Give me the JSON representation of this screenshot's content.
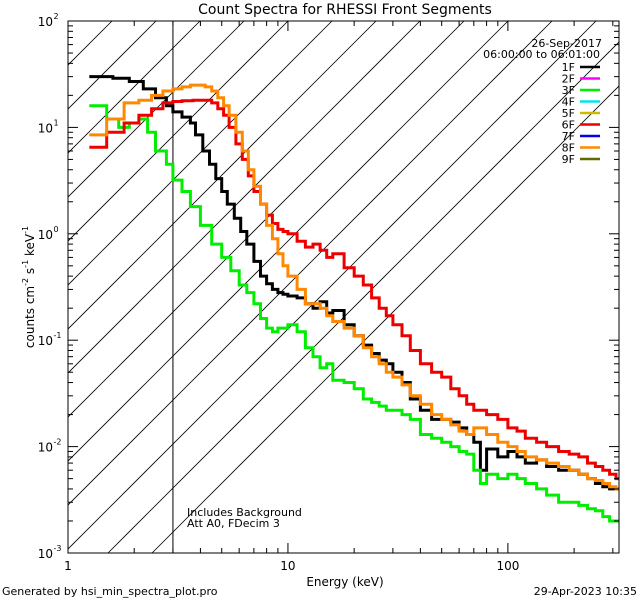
{
  "chart_data": {
    "type": "line",
    "title": "Count Spectra for RHESSI Front Segments",
    "xlabel": "Energy (keV)",
    "ylabel_parts": [
      "counts cm",
      "-2",
      " s",
      "-1",
      " keV",
      "-1"
    ],
    "xscale": "log",
    "yscale": "log",
    "xlim": [
      1,
      320
    ],
    "ylim": [
      0.001,
      100
    ],
    "x_ticks": [
      {
        "value": 1,
        "label": "1"
      },
      {
        "value": 10,
        "label": "10"
      },
      {
        "value": 100,
        "label": "100"
      }
    ],
    "y_ticks": [
      {
        "value": 0.001,
        "base": "10",
        "exp": "-3"
      },
      {
        "value": 0.01,
        "base": "10",
        "exp": "-2"
      },
      {
        "value": 0.1,
        "base": "10",
        "exp": "-1"
      },
      {
        "value": 1,
        "base": "10",
        "exp": "0"
      },
      {
        "value": 10,
        "base": "10",
        "exp": "1"
      },
      {
        "value": 100,
        "base": "10",
        "exp": "2"
      }
    ],
    "date": "26-Sep-2017",
    "time_range": "06:00:00 to 06:01:00",
    "legend_position": "top-right",
    "legend": [
      {
        "label": "1F",
        "color": "#000000"
      },
      {
        "label": "2F",
        "color": "#ff00ff"
      },
      {
        "label": "3F",
        "color": "#00ee00"
      },
      {
        "label": "4F",
        "color": "#00e5ee"
      },
      {
        "label": "5F",
        "color": "#ccbb00"
      },
      {
        "label": "6F",
        "color": "#ee0000"
      },
      {
        "label": "7F",
        "color": "#0000ee"
      },
      {
        "label": "8F",
        "color": "#ff8800"
      },
      {
        "label": "9F",
        "color": "#666600"
      }
    ],
    "shaded_region": {
      "from": 1,
      "to": 3,
      "style": "diagonal-hatch"
    },
    "annotations": [
      "Includes Background",
      "Att A0, FDecim 3"
    ],
    "series": [
      {
        "name": "1F",
        "color": "#000000",
        "points": [
          [
            1.25,
            30
          ],
          [
            1.6,
            29
          ],
          [
            1.9,
            27
          ],
          [
            2.2,
            23
          ],
          [
            2.5,
            19
          ],
          [
            2.8,
            16
          ],
          [
            3.0,
            14
          ],
          [
            3.3,
            12.5
          ],
          [
            3.6,
            11
          ],
          [
            3.8,
            8.5
          ],
          [
            4.1,
            6
          ],
          [
            4.4,
            4.5
          ],
          [
            4.7,
            3.3
          ],
          [
            5.0,
            2.5
          ],
          [
            5.3,
            1.9
          ],
          [
            5.7,
            1.4
          ],
          [
            6.1,
            1.05
          ],
          [
            6.5,
            0.8
          ],
          [
            7.0,
            0.55
          ],
          [
            7.5,
            0.4
          ],
          [
            8.0,
            0.34
          ],
          [
            8.5,
            0.3
          ],
          [
            9.0,
            0.28
          ],
          [
            9.5,
            0.27
          ],
          [
            10,
            0.26
          ],
          [
            11,
            0.25
          ],
          [
            12,
            0.22
          ],
          [
            13,
            0.2
          ],
          [
            14,
            0.23
          ],
          [
            15,
            0.18
          ],
          [
            16,
            0.19
          ],
          [
            18,
            0.14
          ],
          [
            20,
            0.11
          ],
          [
            22,
            0.09
          ],
          [
            24,
            0.075
          ],
          [
            26,
            0.065
          ],
          [
            28,
            0.06
          ],
          [
            30,
            0.05
          ],
          [
            33,
            0.04
          ],
          [
            36,
            0.028
          ],
          [
            40,
            0.022
          ],
          [
            45,
            0.018
          ],
          [
            50,
            0.018
          ],
          [
            55,
            0.017
          ],
          [
            60,
            0.015
          ],
          [
            65,
            0.013
          ],
          [
            70,
            0.011
          ],
          [
            75,
            0.006
          ],
          [
            80,
            0.0095
          ],
          [
            90,
            0.008
          ],
          [
            100,
            0.009
          ],
          [
            110,
            0.008
          ],
          [
            120,
            0.007
          ],
          [
            135,
            0.0075
          ],
          [
            150,
            0.0065
          ],
          [
            170,
            0.006
          ],
          [
            190,
            0.006
          ],
          [
            210,
            0.0055
          ],
          [
            230,
            0.005
          ],
          [
            250,
            0.0045
          ],
          [
            270,
            0.0042
          ],
          [
            290,
            0.004
          ],
          [
            310,
            0.004
          ]
        ]
      },
      {
        "name": "3F",
        "color": "#00ee00",
        "points": [
          [
            1.25,
            16
          ],
          [
            1.5,
            12
          ],
          [
            1.7,
            10
          ],
          [
            1.9,
            11
          ],
          [
            2.1,
            12
          ],
          [
            2.3,
            9
          ],
          [
            2.5,
            6
          ],
          [
            2.8,
            4.5
          ],
          [
            3.0,
            3.2
          ],
          [
            3.3,
            2.5
          ],
          [
            3.6,
            1.8
          ],
          [
            4.0,
            1.2
          ],
          [
            4.5,
            0.8
          ],
          [
            5.0,
            0.6
          ],
          [
            5.5,
            0.45
          ],
          [
            6.0,
            0.33
          ],
          [
            6.5,
            0.28
          ],
          [
            7.0,
            0.22
          ],
          [
            7.5,
            0.16
          ],
          [
            8.0,
            0.13
          ],
          [
            8.5,
            0.12
          ],
          [
            9.0,
            0.13
          ],
          [
            10,
            0.14
          ],
          [
            11,
            0.12
          ],
          [
            12,
            0.085
          ],
          [
            13,
            0.07
          ],
          [
            14,
            0.055
          ],
          [
            15,
            0.06
          ],
          [
            16,
            0.042
          ],
          [
            18,
            0.04
          ],
          [
            20,
            0.035
          ],
          [
            22,
            0.028
          ],
          [
            24,
            0.026
          ],
          [
            26,
            0.024
          ],
          [
            28,
            0.022
          ],
          [
            30,
            0.022
          ],
          [
            33,
            0.02
          ],
          [
            36,
            0.018
          ],
          [
            40,
            0.013
          ],
          [
            45,
            0.012
          ],
          [
            50,
            0.011
          ],
          [
            55,
            0.01
          ],
          [
            60,
            0.009
          ],
          [
            65,
            0.0085
          ],
          [
            70,
            0.006
          ],
          [
            75,
            0.0045
          ],
          [
            80,
            0.0055
          ],
          [
            90,
            0.005
          ],
          [
            100,
            0.0055
          ],
          [
            110,
            0.005
          ],
          [
            120,
            0.0045
          ],
          [
            135,
            0.004
          ],
          [
            150,
            0.0035
          ],
          [
            170,
            0.003
          ],
          [
            190,
            0.003
          ],
          [
            210,
            0.0028
          ],
          [
            230,
            0.0026
          ],
          [
            250,
            0.0025
          ],
          [
            270,
            0.0022
          ],
          [
            290,
            0.002
          ],
          [
            310,
            0.002
          ]
        ]
      },
      {
        "name": "6F",
        "color": "#ee0000",
        "points": [
          [
            1.25,
            6.5
          ],
          [
            1.5,
            9
          ],
          [
            1.8,
            11
          ],
          [
            2.1,
            13
          ],
          [
            2.4,
            15
          ],
          [
            2.7,
            17
          ],
          [
            3.0,
            17.5
          ],
          [
            3.3,
            17.8
          ],
          [
            3.7,
            18
          ],
          [
            4.1,
            18
          ],
          [
            4.5,
            17
          ],
          [
            4.8,
            15
          ],
          [
            5.1,
            13
          ],
          [
            5.4,
            10
          ],
          [
            5.8,
            7
          ],
          [
            6.2,
            5
          ],
          [
            6.6,
            3.5
          ],
          [
            7.0,
            2.5
          ],
          [
            7.5,
            1.9
          ],
          [
            8.0,
            1.5
          ],
          [
            8.5,
            1.25
          ],
          [
            9.0,
            1.1
          ],
          [
            9.5,
            1.05
          ],
          [
            10,
            1.0
          ],
          [
            11,
            0.85
          ],
          [
            12,
            0.75
          ],
          [
            13,
            0.8
          ],
          [
            14,
            0.7
          ],
          [
            15,
            0.6
          ],
          [
            16,
            0.65
          ],
          [
            18,
            0.48
          ],
          [
            20,
            0.4
          ],
          [
            22,
            0.33
          ],
          [
            24,
            0.25
          ],
          [
            26,
            0.2
          ],
          [
            28,
            0.17
          ],
          [
            30,
            0.14
          ],
          [
            33,
            0.11
          ],
          [
            36,
            0.08
          ],
          [
            40,
            0.06
          ],
          [
            45,
            0.05
          ],
          [
            50,
            0.045
          ],
          [
            55,
            0.035
          ],
          [
            60,
            0.03
          ],
          [
            65,
            0.025
          ],
          [
            70,
            0.022
          ],
          [
            80,
            0.02
          ],
          [
            90,
            0.018
          ],
          [
            100,
            0.015
          ],
          [
            110,
            0.014
          ],
          [
            120,
            0.012
          ],
          [
            135,
            0.011
          ],
          [
            150,
            0.01
          ],
          [
            170,
            0.009
          ],
          [
            190,
            0.0085
          ],
          [
            210,
            0.008
          ],
          [
            230,
            0.007
          ],
          [
            250,
            0.0065
          ],
          [
            270,
            0.006
          ],
          [
            290,
            0.0055
          ],
          [
            310,
            0.005
          ]
        ]
      },
      {
        "name": "8F",
        "color": "#ff8800",
        "points": [
          [
            1.25,
            8.5
          ],
          [
            1.5,
            12
          ],
          [
            1.8,
            17
          ],
          [
            2.1,
            18
          ],
          [
            2.4,
            20
          ],
          [
            2.7,
            22
          ],
          [
            3.0,
            23
          ],
          [
            3.3,
            24
          ],
          [
            3.6,
            25
          ],
          [
            3.9,
            25
          ],
          [
            4.2,
            24
          ],
          [
            4.5,
            22
          ],
          [
            4.8,
            19
          ],
          [
            5.1,
            16
          ],
          [
            5.4,
            13
          ],
          [
            5.8,
            9
          ],
          [
            6.2,
            6
          ],
          [
            6.6,
            4
          ],
          [
            7.0,
            2.8
          ],
          [
            7.5,
            1.9
          ],
          [
            8.0,
            1.2
          ],
          [
            8.5,
            0.9
          ],
          [
            9.0,
            0.65
          ],
          [
            9.5,
            0.5
          ],
          [
            10,
            0.4
          ],
          [
            11,
            0.3
          ],
          [
            12,
            0.22
          ],
          [
            13,
            0.22
          ],
          [
            14,
            0.2
          ],
          [
            15,
            0.17
          ],
          [
            16,
            0.15
          ],
          [
            18,
            0.13
          ],
          [
            20,
            0.11
          ],
          [
            22,
            0.085
          ],
          [
            24,
            0.07
          ],
          [
            26,
            0.06
          ],
          [
            28,
            0.05
          ],
          [
            30,
            0.045
          ],
          [
            33,
            0.038
          ],
          [
            36,
            0.03
          ],
          [
            40,
            0.025
          ],
          [
            45,
            0.02
          ],
          [
            50,
            0.018
          ],
          [
            55,
            0.016
          ],
          [
            60,
            0.014
          ],
          [
            65,
            0.013
          ],
          [
            70,
            0.015
          ],
          [
            80,
            0.013
          ],
          [
            90,
            0.011
          ],
          [
            100,
            0.01
          ],
          [
            110,
            0.009
          ],
          [
            120,
            0.008
          ],
          [
            135,
            0.0075
          ],
          [
            150,
            0.007
          ],
          [
            170,
            0.0065
          ],
          [
            190,
            0.006
          ],
          [
            210,
            0.0055
          ],
          [
            230,
            0.005
          ],
          [
            250,
            0.0048
          ],
          [
            270,
            0.0045
          ],
          [
            290,
            0.0042
          ],
          [
            310,
            0.004
          ]
        ]
      }
    ]
  },
  "footer": {
    "generated_by": "Generated by hsi_min_spectra_plot.pro",
    "timestamp": "29-Apr-2023 10:35"
  }
}
